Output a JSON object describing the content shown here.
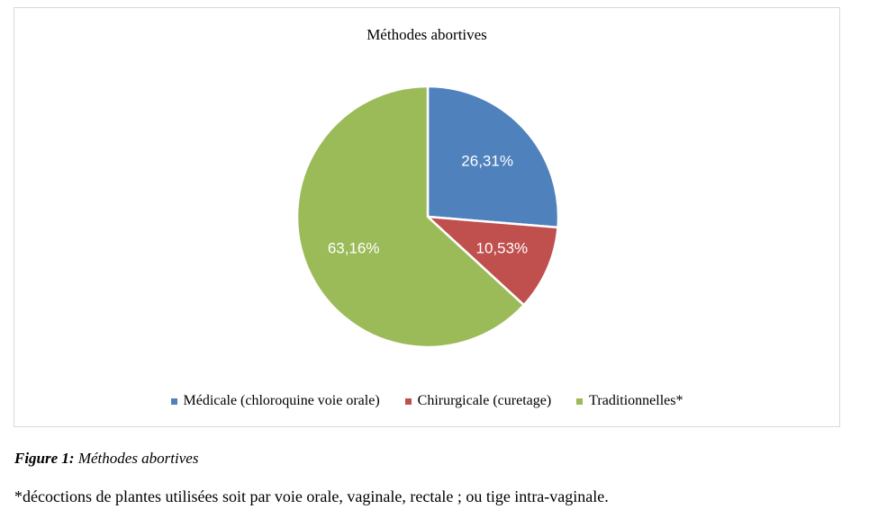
{
  "chart_data": {
    "type": "pie",
    "title": "Méthodes abortives",
    "legend_position": "bottom",
    "slices": [
      {
        "name": "Médicale (chloroquine voie orale)",
        "value": 26.31,
        "label": "26,31%",
        "color": "#4f81bd"
      },
      {
        "name": "Chirurgicale (curetage)",
        "value": 10.53,
        "label": "10,53%",
        "color": "#c0504d"
      },
      {
        "name": "Traditionnelles*",
        "value": 63.16,
        "label": "63,16%",
        "color": "#9bbb59"
      }
    ]
  },
  "caption": {
    "number": "Figure 1:",
    "text": "Méthodes  abortives"
  },
  "footnote": "*décoctions de plantes utilisées soit par voie orale, vaginale, rectale ; ou tige intra-vaginale."
}
